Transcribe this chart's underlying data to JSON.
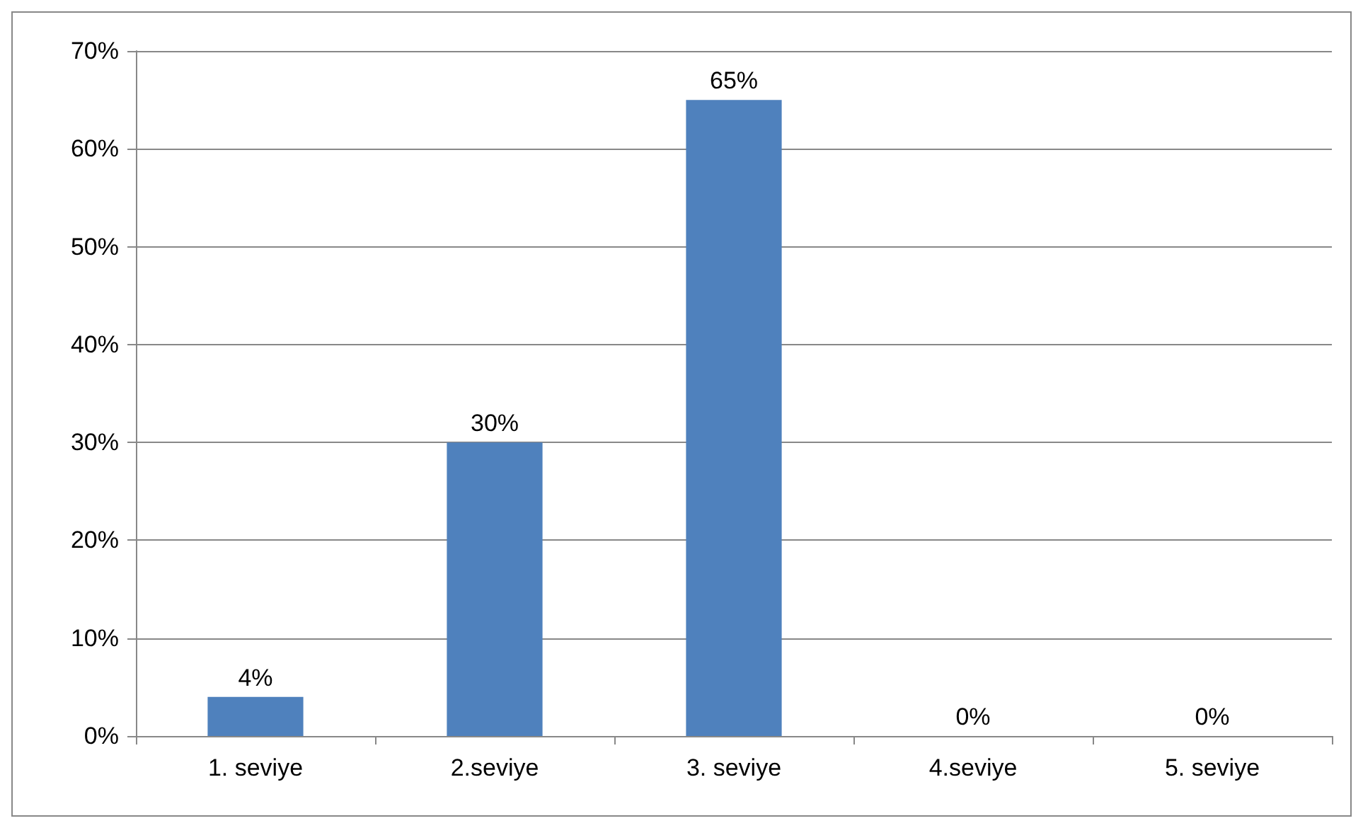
{
  "chart_data": {
    "type": "bar",
    "categories": [
      "1. seviye",
      "2.seviye",
      "3. seviye",
      "4.seviye",
      "5. seviye"
    ],
    "values": [
      4,
      30,
      65,
      0,
      0
    ],
    "value_labels": [
      "4%",
      "30%",
      "65%",
      "0%",
      "0%"
    ],
    "color": "#4f81bd",
    "ylim": [
      0,
      70
    ],
    "yticks": [
      {
        "value": 0,
        "label": "0%"
      },
      {
        "value": 10,
        "label": "10%"
      },
      {
        "value": 20,
        "label": "20%"
      },
      {
        "value": 30,
        "label": "30%"
      },
      {
        "value": 40,
        "label": "40%"
      },
      {
        "value": 50,
        "label": "50%"
      },
      {
        "value": 60,
        "label": "60%"
      },
      {
        "value": 70,
        "label": "70%"
      }
    ],
    "grid": "y"
  }
}
